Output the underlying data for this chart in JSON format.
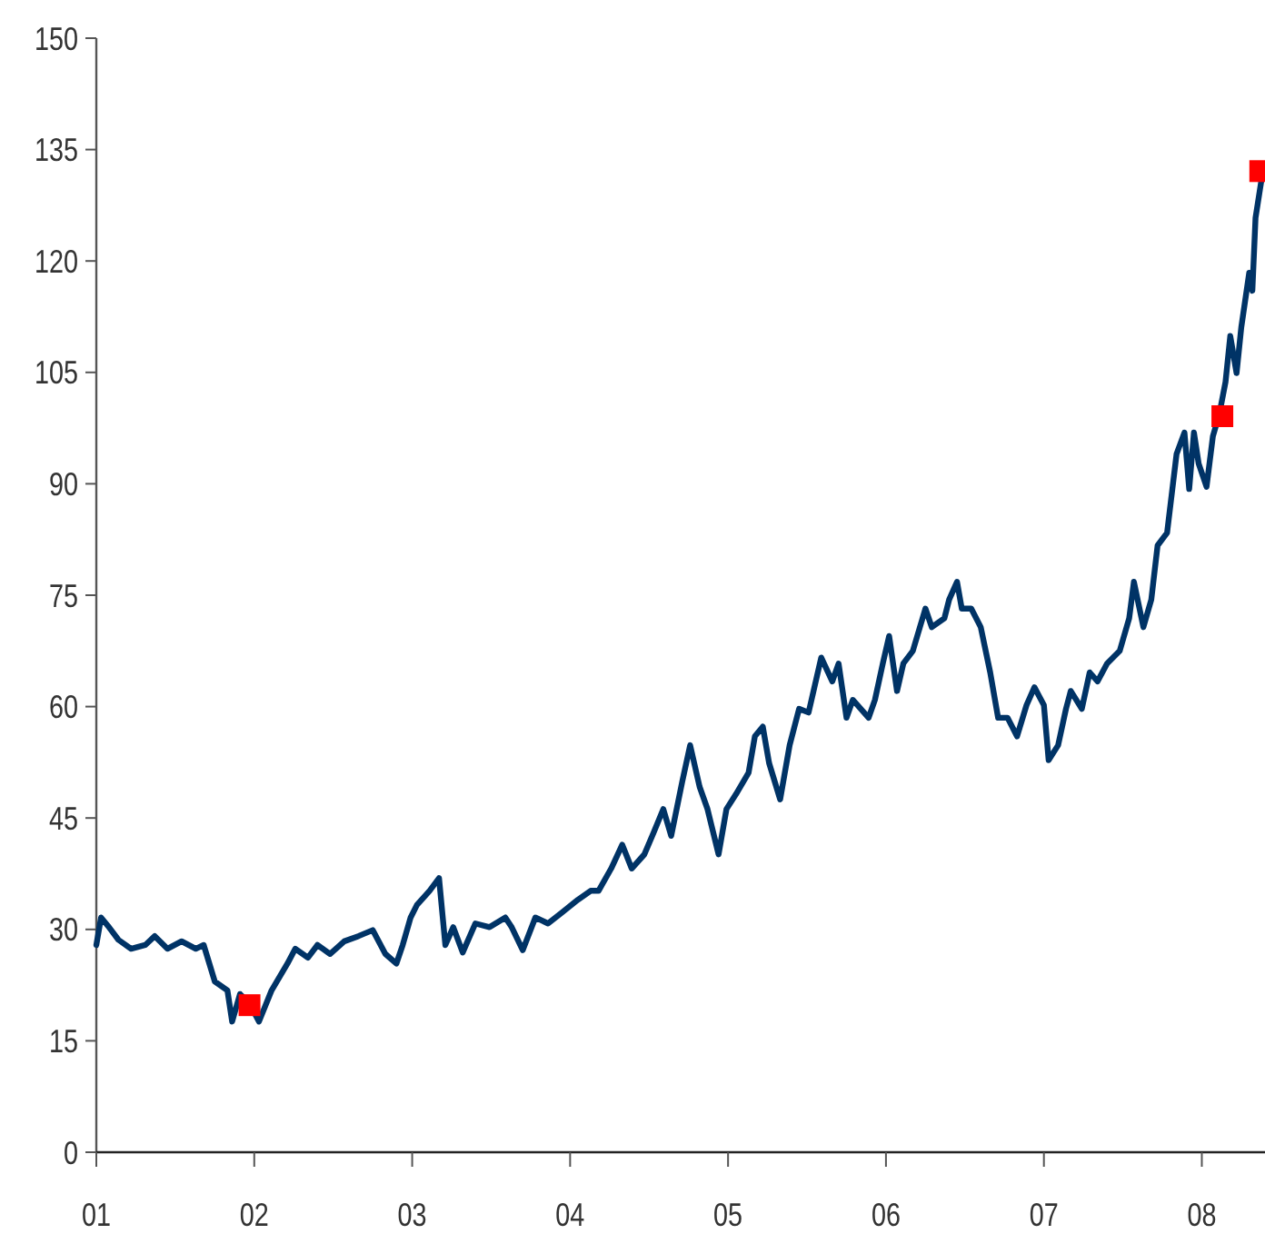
{
  "chart_data": {
    "type": "line",
    "xlim": [
      2001,
      2008.4
    ],
    "ylim": [
      0,
      150
    ],
    "xticks": [
      {
        "value": 2001,
        "label": "01"
      },
      {
        "value": 2002,
        "label": "02"
      },
      {
        "value": 2003,
        "label": "03"
      },
      {
        "value": 2004,
        "label": "04"
      },
      {
        "value": 2005,
        "label": "05"
      },
      {
        "value": 2006,
        "label": "06"
      },
      {
        "value": 2007,
        "label": "07"
      },
      {
        "value": 2008,
        "label": "08"
      }
    ],
    "yticks": [
      0,
      15,
      30,
      45,
      60,
      75,
      90,
      105,
      120,
      135,
      150
    ],
    "grid": false,
    "series": [
      {
        "color": "#003366",
        "marker": "none",
        "line_style": "solid",
        "x": [
          2001,
          2001.03,
          2001.08,
          2001.14,
          2001.22,
          2001.31,
          2001.37,
          2001.45,
          2001.54,
          2001.63,
          2001.68,
          2001.75,
          2001.83,
          2001.86,
          2001.91,
          2001.97,
          2002.03,
          2002.11,
          2002.21,
          2002.26,
          2002.34,
          2002.4,
          2002.48,
          2002.57,
          2002.66,
          2002.75,
          2002.83,
          2002.9,
          2002.94,
          2002.99,
          2003.03,
          2003.11,
          2003.17,
          2003.21,
          2003.26,
          2003.32,
          2003.4,
          2003.49,
          2003.59,
          2003.63,
          2003.7,
          2003.78,
          2003.86,
          2003.95,
          2004.05,
          2004.13,
          2004.18,
          2004.26,
          2004.33,
          2004.39,
          2004.47,
          2004.53,
          2004.59,
          2004.64,
          2004.71,
          2004.76,
          2004.82,
          2004.87,
          2004.94,
          2004.99,
          2005.05,
          2005.13,
          2005.17,
          2005.22,
          2005.26,
          2005.33,
          2005.39,
          2005.45,
          2005.51,
          2005.59,
          2005.66,
          2005.7,
          2005.75,
          2005.79,
          2005.89,
          2005.93,
          2005.98,
          2006.02,
          2006.07,
          2006.11,
          2006.17,
          2006.25,
          2006.29,
          2006.37,
          2006.4,
          2006.45,
          2006.48,
          2006.54,
          2006.6,
          2006.66,
          2006.71,
          2006.77,
          2006.83,
          2006.89,
          2006.94,
          2007,
          2007.03,
          2007.09,
          2007.14,
          2007.17,
          2007.24,
          2007.29,
          2007.34,
          2007.4,
          2007.48,
          2007.54,
          2007.57,
          2007.63,
          2007.68,
          2007.72,
          2007.78,
          2007.84,
          2007.89,
          2007.92,
          2007.95,
          2007.98,
          2008.03,
          2008.07,
          2008.11,
          2008.15,
          2008.18,
          2008.22,
          2008.25,
          2008.3,
          2008.32,
          2008.34,
          2008.39
        ],
        "values": [
          27.9,
          31.6,
          30.3,
          28.6,
          27.4,
          27.9,
          29.1,
          27.4,
          28.4,
          27.4,
          27.9,
          23,
          21.8,
          17.6,
          21.3,
          20,
          17.6,
          21.8,
          25.4,
          27.4,
          26.2,
          27.9,
          26.7,
          28.4,
          29.1,
          29.9,
          26.7,
          25.4,
          27.9,
          31.6,
          33.3,
          35.2,
          36.9,
          27.9,
          30.3,
          26.9,
          30.8,
          30.3,
          31.6,
          30.3,
          27.2,
          31.6,
          30.8,
          32.3,
          34,
          35.2,
          35.2,
          38.2,
          41.4,
          38.2,
          40.1,
          43.1,
          46.2,
          42.6,
          49.9,
          54.8,
          49.2,
          46.2,
          40.1,
          46.2,
          48.2,
          51.1,
          56,
          57.3,
          52.4,
          47.5,
          54.8,
          59.7,
          59.2,
          66.6,
          63.4,
          65.8,
          58.5,
          60.9,
          58.5,
          60.9,
          65.8,
          69.5,
          62.1,
          65.8,
          67.5,
          73.2,
          70.7,
          71.9,
          74.4,
          76.8,
          73.2,
          73.2,
          70.7,
          64.6,
          58.5,
          58.5,
          56,
          60.2,
          62.6,
          60.2,
          52.8,
          54.8,
          59.7,
          62.1,
          59.7,
          64.6,
          63.4,
          65.8,
          67.5,
          71.9,
          76.8,
          70.7,
          74.4,
          81.7,
          83.4,
          94,
          96.9,
          89.3,
          96.9,
          92.7,
          89.6,
          96.4,
          99.3,
          103.7,
          109.9,
          104.9,
          111.1,
          118.4,
          116,
          125.8,
          132.6
        ]
      },
      {
        "type": "scatter",
        "color": "#ff0000",
        "marker": "square",
        "x": [
          2001.97,
          2008.13,
          2008.37
        ],
        "values": [
          19.8,
          99.1,
          132.1
        ]
      }
    ]
  }
}
